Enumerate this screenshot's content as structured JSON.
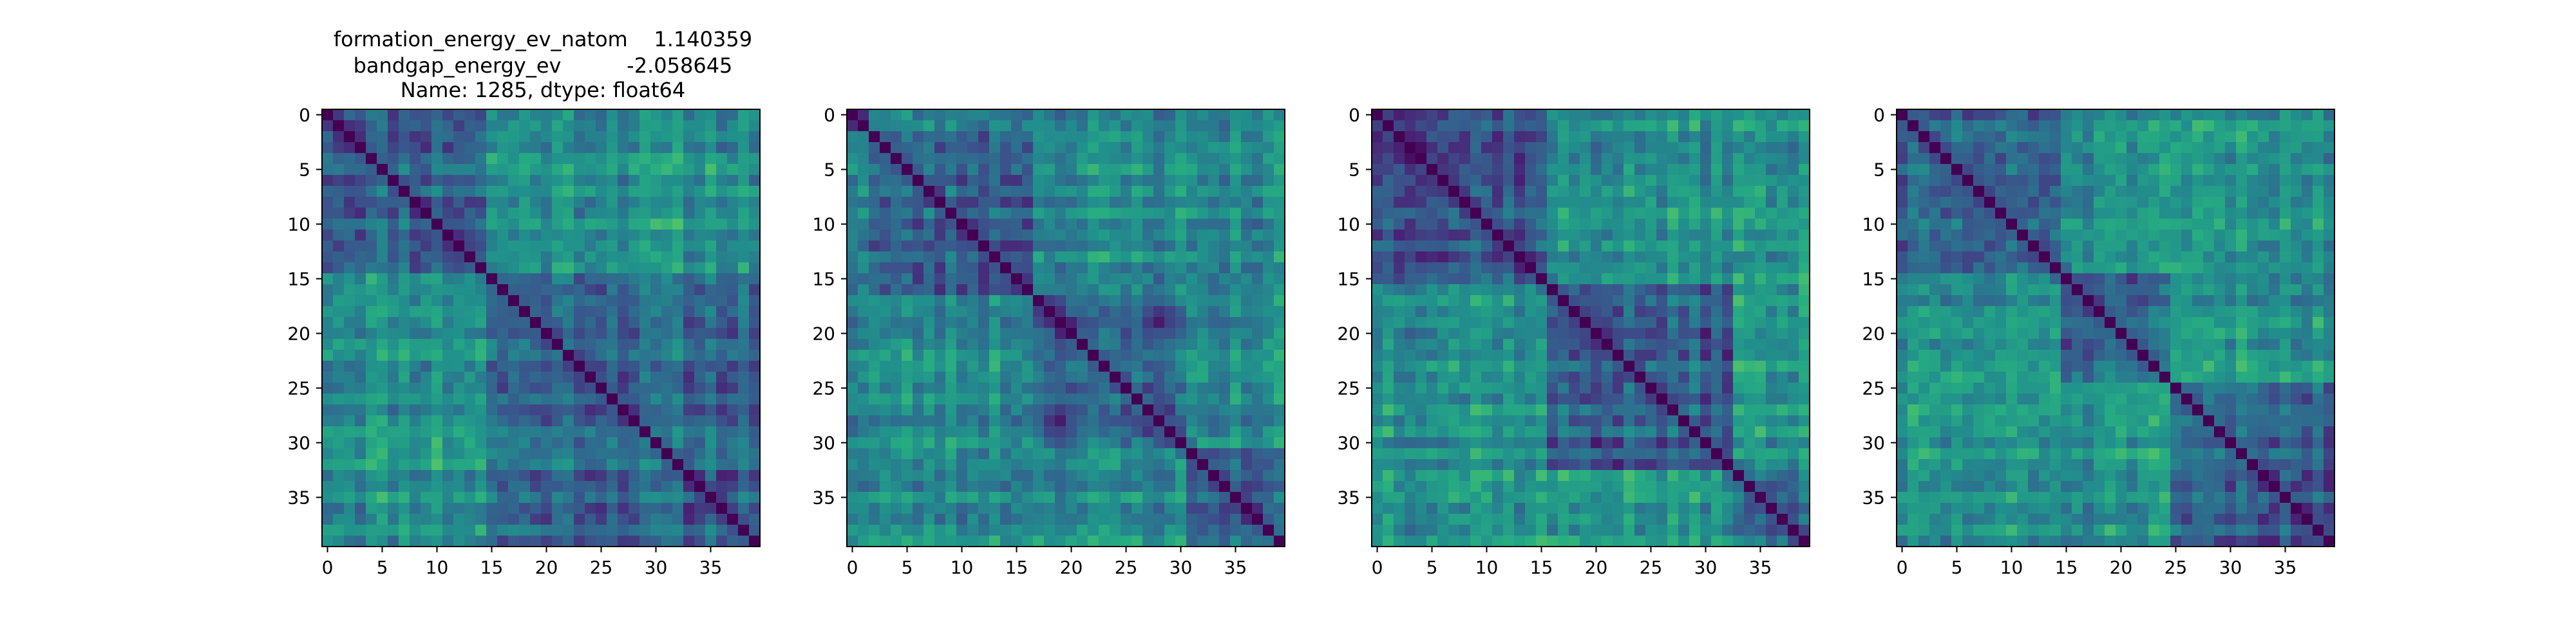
{
  "figure": {
    "title_lines": [
      "formation_energy_ev_natom    1.140359",
      "bandgap_energy_ev          -2.058645",
      "Name: 1285, dtype: float64"
    ]
  },
  "chart_data": [
    {
      "type": "heatmap",
      "colormap": "viridis",
      "matrix_size": 40,
      "diagonal_value": 0.0,
      "blocks": [
        15
      ],
      "same_block_level": 0.34,
      "cross_block_level": 0.52,
      "xticks": [
        0,
        5,
        10,
        15,
        20,
        25,
        30,
        35
      ],
      "yticks": [
        0,
        5,
        10,
        15,
        20,
        25,
        30,
        35
      ],
      "xlim": [
        -0.5,
        39.5
      ],
      "ylim": [
        39.5,
        -0.5
      ],
      "noise_seed": 11
    },
    {
      "type": "heatmap",
      "colormap": "viridis",
      "matrix_size": 40,
      "diagonal_value": 0.0,
      "blocks": [
        2,
        17,
        31
      ],
      "same_block_level": 0.32,
      "cross_block_level": 0.48,
      "xticks": [
        0,
        5,
        10,
        15,
        20,
        25,
        30,
        35
      ],
      "yticks": [
        0,
        5,
        10,
        15,
        20,
        25,
        30,
        35
      ],
      "xlim": [
        -0.5,
        39.5
      ],
      "ylim": [
        39.5,
        -0.5
      ],
      "noise_seed": 23
    },
    {
      "type": "heatmap",
      "colormap": "viridis",
      "matrix_size": 40,
      "diagonal_value": 0.0,
      "blocks": [
        16,
        33
      ],
      "same_block_level": 0.3,
      "cross_block_level": 0.52,
      "xticks": [
        0,
        5,
        10,
        15,
        20,
        25,
        30,
        35
      ],
      "yticks": [
        0,
        5,
        10,
        15,
        20,
        25,
        30,
        35
      ],
      "xlim": [
        -0.5,
        39.5
      ],
      "ylim": [
        39.5,
        -0.5
      ],
      "noise_seed": 37
    },
    {
      "type": "heatmap",
      "colormap": "viridis",
      "matrix_size": 40,
      "diagonal_value": 0.0,
      "blocks": [
        15,
        25
      ],
      "same_block_level": 0.31,
      "cross_block_level": 0.5,
      "xticks": [
        0,
        5,
        10,
        15,
        20,
        25,
        30,
        35
      ],
      "yticks": [
        0,
        5,
        10,
        15,
        20,
        25,
        30,
        35
      ],
      "xlim": [
        -0.5,
        39.5
      ],
      "ylim": [
        39.5,
        -0.5
      ],
      "noise_seed": 51
    }
  ]
}
